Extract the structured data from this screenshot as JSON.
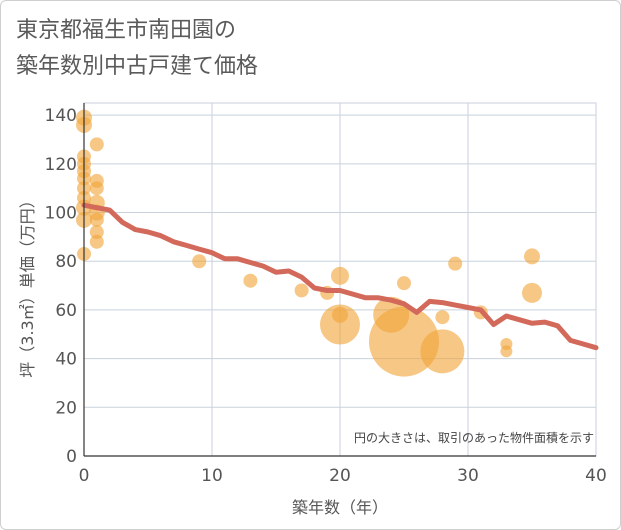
{
  "title_lines": [
    "東京都福生市南田園の",
    "築年数別中古戸建て価格"
  ],
  "chart_data": {
    "type": "scatter",
    "xlabel": "築年数（年）",
    "ylabel": "坪（3.3㎡）単価（万円）",
    "xlim": [
      0,
      40
    ],
    "ylim": [
      0,
      145
    ],
    "xticks": [
      0,
      10,
      20,
      30,
      40
    ],
    "yticks": [
      0,
      20,
      40,
      60,
      80,
      100,
      120,
      140
    ],
    "grid": true,
    "note": "円の大きさは、取引のあった物件面積を示す",
    "colors": {
      "bubble": "#f0a53a",
      "trend": "#d2695a",
      "grid": "#c8d2dc"
    },
    "series": [
      {
        "type": "bubble",
        "points": [
          {
            "x": 0,
            "y": 139,
            "r": 8
          },
          {
            "x": 0,
            "y": 136,
            "r": 8
          },
          {
            "x": 0,
            "y": 123,
            "r": 7
          },
          {
            "x": 0,
            "y": 120,
            "r": 7
          },
          {
            "x": 0,
            "y": 117,
            "r": 7
          },
          {
            "x": 0,
            "y": 114,
            "r": 7
          },
          {
            "x": 0,
            "y": 110,
            "r": 7
          },
          {
            "x": 0,
            "y": 106,
            "r": 7
          },
          {
            "x": 0,
            "y": 102,
            "r": 8
          },
          {
            "x": 0,
            "y": 97,
            "r": 8
          },
          {
            "x": 0,
            "y": 83,
            "r": 7
          },
          {
            "x": 1,
            "y": 128,
            "r": 7
          },
          {
            "x": 1,
            "y": 113,
            "r": 7
          },
          {
            "x": 1,
            "y": 110,
            "r": 7
          },
          {
            "x": 1,
            "y": 104,
            "r": 8
          },
          {
            "x": 1,
            "y": 100,
            "r": 8
          },
          {
            "x": 1,
            "y": 97,
            "r": 7
          },
          {
            "x": 1,
            "y": 92,
            "r": 7
          },
          {
            "x": 1,
            "y": 88,
            "r": 7
          },
          {
            "x": 9,
            "y": 80,
            "r": 7
          },
          {
            "x": 13,
            "y": 72,
            "r": 7
          },
          {
            "x": 17,
            "y": 68,
            "r": 7
          },
          {
            "x": 19,
            "y": 67,
            "r": 7
          },
          {
            "x": 20,
            "y": 74,
            "r": 9
          },
          {
            "x": 20,
            "y": 58,
            "r": 8
          },
          {
            "x": 20,
            "y": 54,
            "r": 20
          },
          {
            "x": 24,
            "y": 58,
            "r": 18
          },
          {
            "x": 25,
            "y": 71,
            "r": 7
          },
          {
            "x": 25,
            "y": 47,
            "r": 35
          },
          {
            "x": 28,
            "y": 57,
            "r": 7
          },
          {
            "x": 28,
            "y": 43,
            "r": 22
          },
          {
            "x": 29,
            "y": 79,
            "r": 7
          },
          {
            "x": 31,
            "y": 59,
            "r": 7
          },
          {
            "x": 33,
            "y": 46,
            "r": 6
          },
          {
            "x": 33,
            "y": 43,
            "r": 6
          },
          {
            "x": 35,
            "y": 82,
            "r": 8
          },
          {
            "x": 35,
            "y": 67,
            "r": 10
          }
        ]
      },
      {
        "type": "line",
        "x": [
          0,
          1,
          2,
          3,
          4,
          5,
          6,
          7,
          8,
          9,
          10,
          11,
          12,
          13,
          14,
          15,
          16,
          17,
          18,
          19,
          20,
          21,
          22,
          23,
          24,
          25,
          26,
          27,
          28,
          29,
          30,
          31,
          32,
          33,
          34,
          35,
          36,
          37,
          38,
          39,
          40
        ],
        "y": [
          103,
          102,
          101,
          96,
          93,
          92,
          90.5,
          88,
          86.5,
          85,
          83.5,
          81,
          81,
          79.5,
          78,
          75.5,
          76,
          73.5,
          69,
          68,
          68,
          66.5,
          65,
          65,
          64,
          62.5,
          59,
          63.5,
          63,
          62,
          61,
          60,
          54,
          57.5,
          56,
          54.5,
          55,
          53.5,
          47.5,
          46,
          44.5
        ]
      }
    ]
  }
}
